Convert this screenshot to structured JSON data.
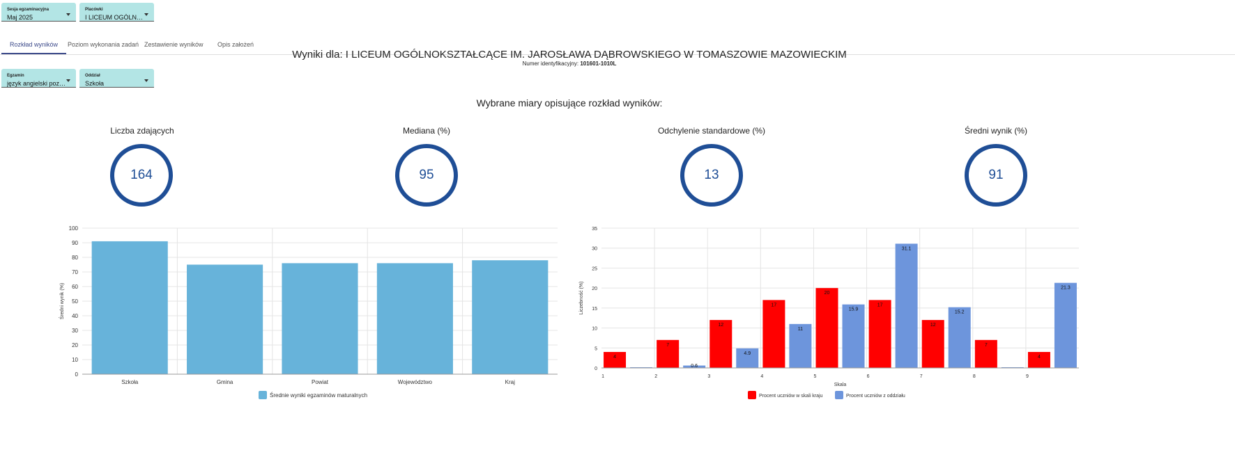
{
  "filters": {
    "session": {
      "label": "Sesja egzaminacyjna",
      "value": "Maj 2025"
    },
    "institution": {
      "label": "Placówki",
      "value": "I LICEUM OGÓLNOKSZTAŁCĄCE IM. JAROSŁAWA DĄBROWSKIEGO W TOMASZOWIE MAZOWIECKIM"
    },
    "exam": {
      "label": "Egzamin",
      "value": "język angielski poziom podstawowy"
    },
    "department": {
      "label": "Oddział",
      "value": "Szkoła"
    }
  },
  "tabs": [
    "Rozkład wyników",
    "Poziom wykonania zadań",
    "Zestawienie wyników",
    "Opis założeń"
  ],
  "header": {
    "title": "Wyniki dla: I LICEUM OGÓLNOKSZTAŁCĄCE IM. JAROSŁAWA DĄBROWSKIEGO W TOMASZOWIE MAZOWIECKIM",
    "id_label": "Numer identyfikacyjny:",
    "id_value": "101601-1010L"
  },
  "measures_title": "Wybrane miary opisujące rozkład wyników:",
  "metrics": [
    {
      "label": "Liczba zdających",
      "value": "164"
    },
    {
      "label": "Mediana (%)",
      "value": "95"
    },
    {
      "label": "Odchylenie standardowe (%)",
      "value": "13"
    },
    {
      "label": "Średni wynik (%)",
      "value": "91"
    }
  ],
  "colors": {
    "ring": "#1f4e96",
    "bar_left": "#67b3da",
    "red": "#ff0000",
    "blue": "#6d95dc",
    "dropdown": "#b3e5e5"
  },
  "chart_data": [
    {
      "type": "bar",
      "categories": [
        "Szkoła",
        "Gmina",
        "Powiat",
        "Województwo",
        "Kraj"
      ],
      "values": [
        91,
        75,
        76,
        76,
        78
      ],
      "ylabel": "Średni wynik (%)",
      "ylim": [
        0,
        100
      ],
      "yticks": [
        0,
        10,
        20,
        30,
        40,
        50,
        60,
        70,
        80,
        90,
        100
      ],
      "legend": [
        "Średnie wyniki egzaminów maturalnych"
      ],
      "grid": true,
      "legend_position": "bottom"
    },
    {
      "type": "bar",
      "categories": [
        "1",
        "2",
        "3",
        "4",
        "5",
        "6",
        "7",
        "8",
        "9"
      ],
      "series": [
        {
          "name": "Procent uczniów w skali kraju",
          "values": [
            4,
            7,
            12,
            17,
            20,
            17,
            12,
            7,
            4
          ]
        },
        {
          "name": "Procent uczniów z oddziału",
          "values": [
            0,
            0.6,
            4.9,
            11,
            15.9,
            31.1,
            15.2,
            0,
            21.3
          ]
        }
      ],
      "data_labels": [
        [
          "4",
          "7",
          "12",
          "17",
          "20",
          "17",
          "12",
          "7",
          "4"
        ],
        [
          "",
          "0.6",
          "4.9",
          "11",
          "15.9",
          "31.1",
          "15.2",
          "",
          "21.3"
        ]
      ],
      "xlabel": "Skala",
      "ylabel": "Liczebność (%)",
      "ylim": [
        0,
        35
      ],
      "yticks": [
        0,
        5,
        10,
        15,
        20,
        25,
        30,
        35
      ],
      "grid": true,
      "legend_position": "bottom"
    }
  ]
}
